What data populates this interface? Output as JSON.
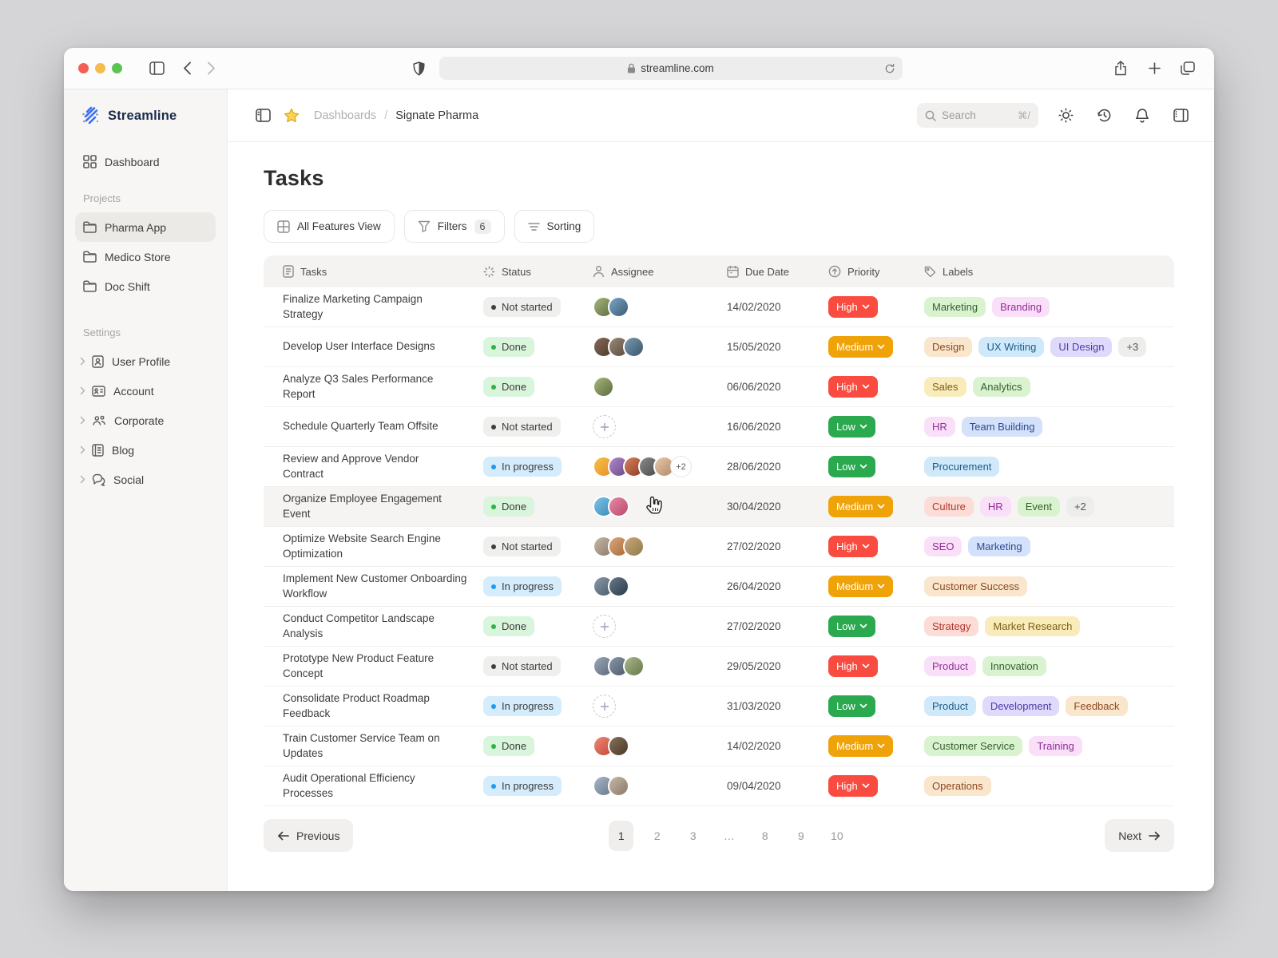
{
  "browser": {
    "url": "streamline.com"
  },
  "sidebar": {
    "logo": "Streamline",
    "dashboard_label": "Dashboard",
    "projects_label": "Projects",
    "projects": [
      {
        "label": "Pharma App",
        "active": true
      },
      {
        "label": "Medico Store",
        "active": false
      },
      {
        "label": "Doc Shift",
        "active": false
      }
    ],
    "settings_label": "Settings",
    "settings": [
      {
        "label": "User Profile"
      },
      {
        "label": "Account"
      },
      {
        "label": "Corporate"
      },
      {
        "label": "Blog"
      },
      {
        "label": "Social"
      }
    ]
  },
  "header": {
    "breadcrumb_parent": "Dashboards",
    "breadcrumb_separator": "/",
    "breadcrumb_current": "Signate Pharma",
    "search_placeholder": "Search",
    "search_shortcut": "⌘/"
  },
  "page": {
    "title": "Tasks"
  },
  "toolbar": {
    "view_button": "All Features View",
    "filters_button": "Filters",
    "filters_count": "6",
    "sorting_button": "Sorting"
  },
  "table": {
    "columns": [
      {
        "label": "Tasks",
        "icon": "document-icon"
      },
      {
        "label": "Status",
        "icon": "status-spinner-icon"
      },
      {
        "label": "Assignee",
        "icon": "person-icon"
      },
      {
        "label": "Due Date",
        "icon": "calendar-icon"
      },
      {
        "label": "Priority",
        "icon": "priority-circle-icon"
      },
      {
        "label": "Labels",
        "icon": "tag-icon"
      }
    ]
  },
  "status_styles": {
    "not_started": {
      "label": "Not started",
      "bg": "#efefed",
      "dot": "#3f3f3f"
    },
    "done": {
      "label": "Done",
      "bg": "#d9f5dc",
      "dot": "#2fb344"
    },
    "in_progress": {
      "label": "In progress",
      "bg": "#d5ecfc",
      "dot": "#1e9bf0"
    }
  },
  "priority_styles": {
    "high": {
      "label": "High",
      "bg": "#f94b3f"
    },
    "medium": {
      "label": "Medium",
      "bg": "#efa309"
    },
    "low": {
      "label": "Low",
      "bg": "#2aa94f"
    }
  },
  "label_styles": {
    "green": {
      "bg": "#d9f2d0",
      "text": "#35612d"
    },
    "magenta": {
      "bg": "#fadff9",
      "text": "#932d98"
    },
    "peach": {
      "bg": "#fae5cd",
      "text": "#8c4a21"
    },
    "blue": {
      "bg": "#cfe9fb",
      "text": "#1d5b88"
    },
    "lavender": {
      "bg": "#dfdafb",
      "text": "#4b3ba8"
    },
    "yellow": {
      "bg": "#f9ecba",
      "text": "#7c5c17"
    },
    "periwinkle": {
      "bg": "#d4e1fb",
      "text": "#2d4a90"
    },
    "salmon": {
      "bg": "#fcdcd6",
      "text": "#b2372a"
    },
    "gray": {
      "bg": "#ededeb",
      "text": "#555555"
    }
  },
  "rows": [
    {
      "task": "Finalize Marketing Campaign Strategy",
      "status": "not_started",
      "assignees": {
        "type": "avatars",
        "colors": [
          [
            "#a8b87a",
            "#5d6b3f"
          ],
          [
            "#7aa7c7",
            "#3d5a73"
          ]
        ]
      },
      "due": "14/02/2020",
      "priority": "high",
      "labels": [
        {
          "text": "Marketing",
          "color": "green"
        },
        {
          "text": "Branding",
          "color": "magenta"
        }
      ]
    },
    {
      "task": "Develop User Interface Designs",
      "status": "done",
      "assignees": {
        "type": "avatars",
        "colors": [
          [
            "#8a6a55",
            "#4a3a30"
          ],
          [
            "#9a8a7a",
            "#5a4a3a"
          ],
          [
            "#7a9ab0",
            "#3a566b"
          ]
        ]
      },
      "due": "15/05/2020",
      "priority": "medium",
      "labels": [
        {
          "text": "Design",
          "color": "peach"
        },
        {
          "text": "UX Writing",
          "color": "blue"
        },
        {
          "text": "UI Design",
          "color": "lavender"
        }
      ],
      "labels_extra": "+3"
    },
    {
      "task": "Analyze Q3 Sales Performance Report",
      "status": "done",
      "assignees": {
        "type": "avatars",
        "colors": [
          [
            "#a8b87a",
            "#5d6b3f"
          ]
        ]
      },
      "due": "06/06/2020",
      "priority": "high",
      "labels": [
        {
          "text": "Sales",
          "color": "yellow"
        },
        {
          "text": "Analytics",
          "color": "green"
        }
      ]
    },
    {
      "task": "Schedule Quarterly Team Offsite",
      "status": "not_started",
      "assignees": {
        "type": "add"
      },
      "due": "16/06/2020",
      "priority": "low",
      "labels": [
        {
          "text": "HR",
          "color": "magenta"
        },
        {
          "text": "Team Building",
          "color": "periwinkle"
        }
      ]
    },
    {
      "task": "Review and Approve Vendor Contract",
      "status": "in_progress",
      "assignees": {
        "type": "avatars",
        "colors": [
          [
            "#f5c044",
            "#e8912d"
          ],
          [
            "#b089c9",
            "#6a4a8a"
          ],
          [
            "#d9825a",
            "#8a3a2a"
          ],
          [
            "#8a8a8a",
            "#4a4a4a"
          ],
          [
            "#e8c9a8",
            "#b08a6a"
          ]
        ],
        "overflow": "+2"
      },
      "due": "28/06/2020",
      "priority": "low",
      "labels": [
        {
          "text": "Procurement",
          "color": "blue"
        }
      ]
    },
    {
      "task": "Organize Employee Engagement Event",
      "status": "done",
      "hovered": true,
      "assignees": {
        "type": "avatars",
        "colors": [
          [
            "#7ec3e8",
            "#3a8ab8"
          ],
          [
            "#e889a8",
            "#b84a6a"
          ]
        ]
      },
      "due": "30/04/2020",
      "priority": "medium",
      "labels": [
        {
          "text": "Culture",
          "color": "salmon"
        },
        {
          "text": "HR",
          "color": "magenta"
        },
        {
          "text": "Event",
          "color": "green"
        }
      ],
      "labels_extra": "+2"
    },
    {
      "task": "Optimize Website Search Engine Optimization",
      "status": "not_started",
      "assignees": {
        "type": "avatars",
        "colors": [
          [
            "#c9b8a8",
            "#8a7a6a"
          ],
          [
            "#d9a87a",
            "#a8683a"
          ],
          [
            "#c9a878",
            "#917a4a"
          ]
        ]
      },
      "due": "27/02/2020",
      "priority": "high",
      "labels": [
        {
          "text": "SEO",
          "color": "magenta"
        },
        {
          "text": "Marketing",
          "color": "periwinkle"
        }
      ]
    },
    {
      "task": "Implement New Customer Onboarding Workflow",
      "status": "in_progress",
      "assignees": {
        "type": "avatars",
        "colors": [
          [
            "#8a9aa8",
            "#4a5a68"
          ],
          [
            "#6a7a8a",
            "#2a3a4a"
          ]
        ]
      },
      "due": "26/04/2020",
      "priority": "medium",
      "labels": [
        {
          "text": "Customer Success",
          "color": "peach"
        }
      ]
    },
    {
      "task": "Conduct Competitor Landscape Analysis",
      "status": "done",
      "assignees": {
        "type": "add"
      },
      "due": "27/02/2020",
      "priority": "low",
      "labels": [
        {
          "text": "Strategy",
          "color": "salmon"
        },
        {
          "text": "Market Research",
          "color": "yellow"
        }
      ]
    },
    {
      "task": "Prototype New Product Feature Concept",
      "status": "not_started",
      "assignees": {
        "type": "avatars",
        "colors": [
          [
            "#9aa8b8",
            "#5a6878"
          ],
          [
            "#8a98a8",
            "#4a5868"
          ],
          [
            "#a8b888",
            "#687848"
          ]
        ]
      },
      "due": "29/05/2020",
      "priority": "high",
      "labels": [
        {
          "text": "Product",
          "color": "magenta"
        },
        {
          "text": "Innovation",
          "color": "green"
        }
      ]
    },
    {
      "task": "Consolidate Product Roadmap Feedback",
      "status": "in_progress",
      "assignees": {
        "type": "add"
      },
      "due": "31/03/2020",
      "priority": "low",
      "labels": [
        {
          "text": "Product",
          "color": "blue"
        },
        {
          "text": "Development",
          "color": "lavender"
        },
        {
          "text": "Feedback",
          "color": "peach"
        }
      ]
    },
    {
      "task": "Train Customer Service Team on Updates",
      "status": "done",
      "assignees": {
        "type": "avatars",
        "colors": [
          [
            "#f08878",
            "#c04838"
          ],
          [
            "#887058",
            "#483828"
          ]
        ]
      },
      "due": "14/02/2020",
      "priority": "medium",
      "labels": [
        {
          "text": "Customer Service",
          "color": "green"
        },
        {
          "text": "Training",
          "color": "magenta"
        }
      ]
    },
    {
      "task": "Audit Operational Efficiency Processes",
      "status": "in_progress",
      "assignees": {
        "type": "avatars",
        "colors": [
          [
            "#a8b8c8",
            "#687888"
          ],
          [
            "#c8b8a8",
            "#887868"
          ]
        ]
      },
      "due": "09/04/2020",
      "priority": "high",
      "labels": [
        {
          "text": "Operations",
          "color": "peach"
        }
      ]
    }
  ],
  "pagination": {
    "previous": "Previous",
    "next": "Next",
    "pages": [
      "1",
      "2",
      "3",
      "…",
      "8",
      "9",
      "10"
    ],
    "active_page": "1"
  }
}
